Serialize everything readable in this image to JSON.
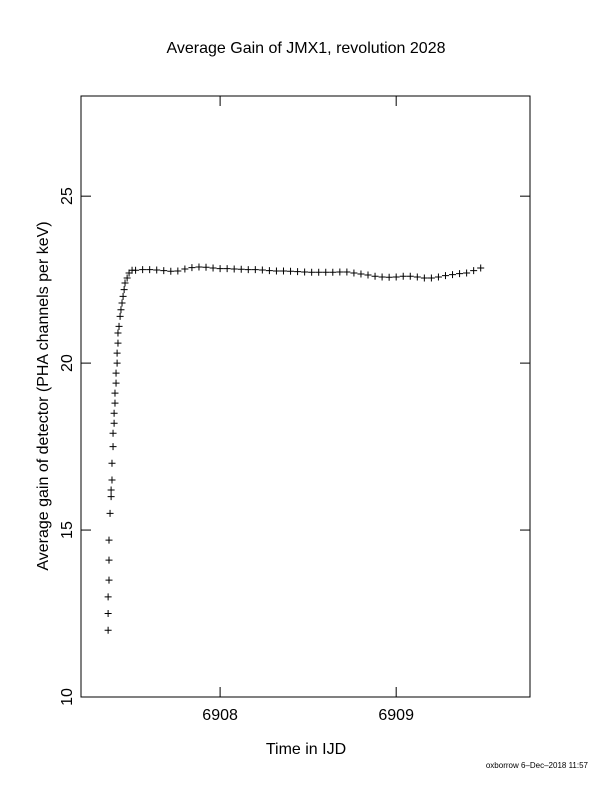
{
  "chart_data": {
    "type": "scatter",
    "title": "Average Gain of JMX1, revolution 2028",
    "x_label": "Time in IJD",
    "y_label": "Average gain of detector (PHA channels per keV)",
    "footer": "oxborrow 6–Dec–2018 11:57",
    "color": "#000000",
    "marker": "plus",
    "xlim": [
      6907.21,
      6909.76
    ],
    "ylim": [
      10,
      28
    ],
    "xticks": [
      6908,
      6909
    ],
    "yticks": [
      10,
      15,
      20,
      25
    ],
    "x": [
      6907.364,
      6907.364,
      6907.364,
      6907.369,
      6907.369,
      6907.369,
      6907.375,
      6907.381,
      6907.381,
      6907.386,
      6907.386,
      6907.392,
      6907.392,
      6907.398,
      6907.398,
      6907.403,
      6907.403,
      6907.409,
      6907.409,
      6907.415,
      6907.415,
      6907.42,
      6907.42,
      6907.426,
      6907.432,
      6907.437,
      6907.443,
      6907.449,
      6907.455,
      6907.46,
      6907.472,
      6907.483,
      6907.5,
      6907.52,
      6907.56,
      6907.6,
      6907.64,
      6907.68,
      6907.72,
      6907.76,
      6907.8,
      6907.84,
      6907.88,
      6907.92,
      6907.96,
      6908.0,
      6908.04,
      6908.08,
      6908.12,
      6908.16,
      6908.2,
      6908.24,
      6908.28,
      6908.32,
      6908.36,
      6908.4,
      6908.44,
      6908.48,
      6908.52,
      6908.56,
      6908.6,
      6908.64,
      6908.68,
      6908.72,
      6908.76,
      6908.8,
      6908.84,
      6908.88,
      6908.92,
      6908.96,
      6909.0,
      6909.04,
      6909.08,
      6909.12,
      6909.16,
      6909.2,
      6909.24,
      6909.28,
      6909.32,
      6909.36,
      6909.4,
      6909.44,
      6909.48
    ],
    "values": [
      12.0,
      12.5,
      13.0,
      13.5,
      14.1,
      14.7,
      15.5,
      16.0,
      16.2,
      16.5,
      17.0,
      17.5,
      17.9,
      18.2,
      18.5,
      18.8,
      19.1,
      19.4,
      19.7,
      20.0,
      20.3,
      20.6,
      20.9,
      21.1,
      21.4,
      21.6,
      21.8,
      22.0,
      22.2,
      22.4,
      22.55,
      22.7,
      22.78,
      22.78,
      22.8,
      22.8,
      22.79,
      22.77,
      22.75,
      22.76,
      22.82,
      22.86,
      22.88,
      22.87,
      22.85,
      22.83,
      22.83,
      22.82,
      22.81,
      22.8,
      22.8,
      22.79,
      22.77,
      22.76,
      22.76,
      22.75,
      22.74,
      22.73,
      22.72,
      22.72,
      22.72,
      22.72,
      22.73,
      22.73,
      22.7,
      22.67,
      22.64,
      22.6,
      22.58,
      22.57,
      22.58,
      22.6,
      22.6,
      22.58,
      22.55,
      22.55,
      22.58,
      22.62,
      22.65,
      22.68,
      22.7,
      22.77,
      22.85
    ]
  }
}
